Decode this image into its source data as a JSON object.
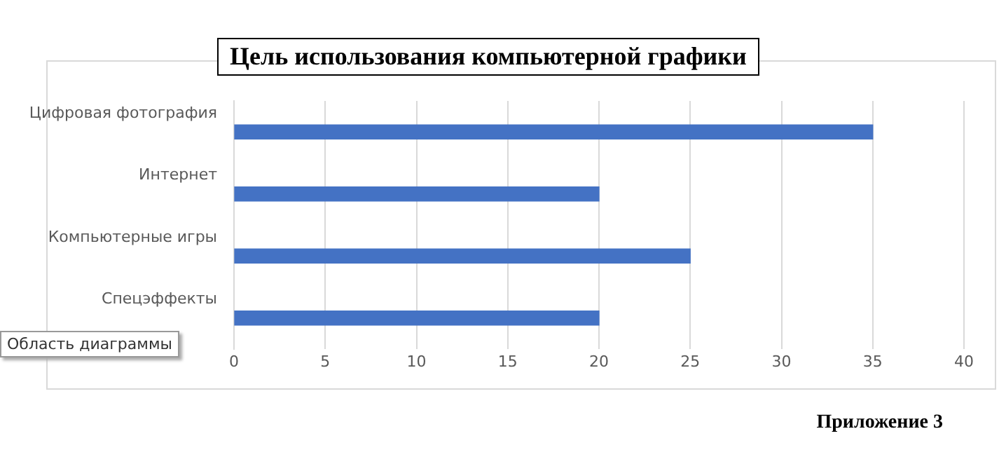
{
  "chart_data": {
    "type": "bar",
    "orientation": "horizontal",
    "title": "Цель использования компьютерной графики",
    "categories": [
      "Цифровая фотография",
      "Интернет",
      "Компьютерные игры",
      "Спецэффекты"
    ],
    "values": [
      35,
      20,
      25,
      20
    ],
    "color": "#4472c4",
    "xlim": [
      0,
      40
    ],
    "xticks": [
      0,
      5,
      10,
      15,
      20,
      25,
      30,
      35,
      40
    ],
    "grid": "x",
    "legend": false,
    "annotations": [
      "Область диаграммы",
      "Приложение 3"
    ]
  }
}
